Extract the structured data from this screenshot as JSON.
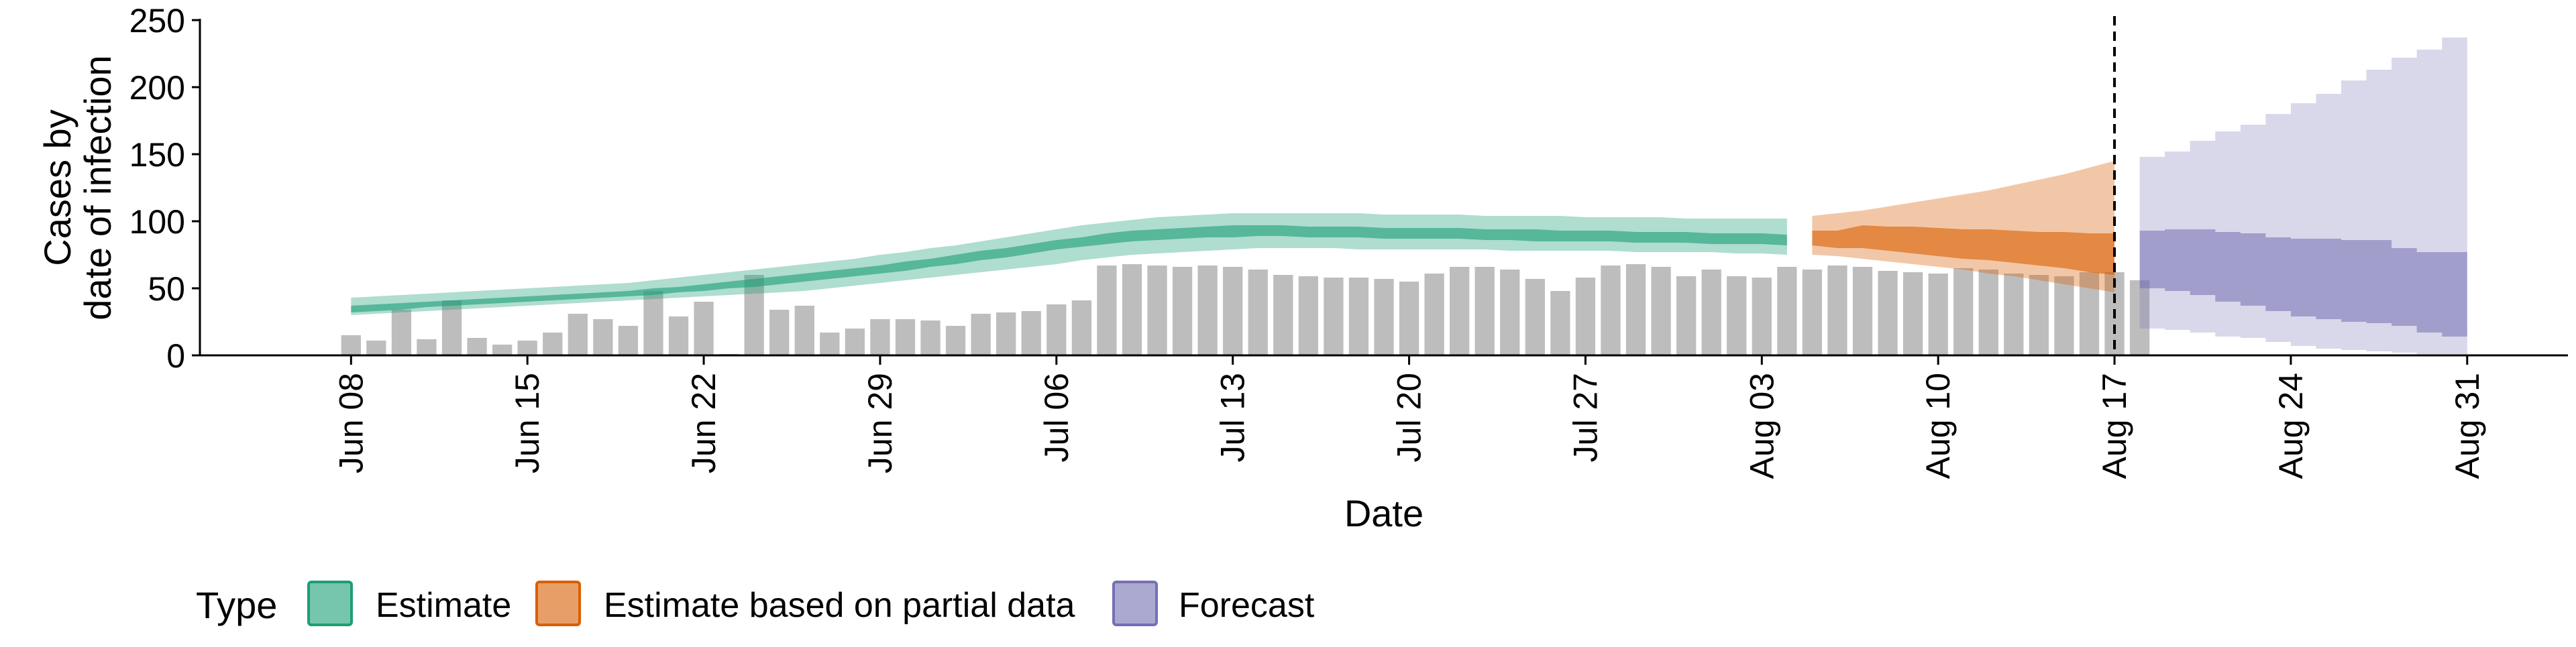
{
  "chart_data": {
    "type": "bar",
    "title": "",
    "xlabel": "Date",
    "ylabel_lines": [
      "Cases by",
      "date of infection"
    ],
    "ylim": [
      0,
      250
    ],
    "yticks": [
      0,
      50,
      100,
      150,
      200,
      250
    ],
    "x_range": [
      "2020-06-02",
      "2020-09-04"
    ],
    "xtick_labels": [
      {
        "date": "2020-06-08",
        "label": "Jun 08"
      },
      {
        "date": "2020-06-15",
        "label": "Jun 15"
      },
      {
        "date": "2020-06-22",
        "label": "Jun 22"
      },
      {
        "date": "2020-06-29",
        "label": "Jun 29"
      },
      {
        "date": "2020-07-06",
        "label": "Jul 06"
      },
      {
        "date": "2020-07-13",
        "label": "Jul 13"
      },
      {
        "date": "2020-07-20",
        "label": "Jul 20"
      },
      {
        "date": "2020-07-27",
        "label": "Jul 27"
      },
      {
        "date": "2020-08-03",
        "label": "Aug 03"
      },
      {
        "date": "2020-08-10",
        "label": "Aug 10"
      },
      {
        "date": "2020-08-17",
        "label": "Aug 17"
      },
      {
        "date": "2020-08-24",
        "label": "Aug 24"
      },
      {
        "date": "2020-08-31",
        "label": "Aug 31"
      }
    ],
    "bars": {
      "start_date": "2020-06-08",
      "color": "#bdbdbd",
      "values": [
        15,
        11,
        34,
        12,
        41,
        13,
        8,
        11,
        17,
        31,
        27,
        22,
        48,
        29,
        40,
        1,
        60,
        34,
        37,
        17,
        20,
        27,
        27,
        26,
        22,
        31,
        32,
        33,
        38,
        41,
        67,
        68,
        67,
        66,
        67,
        66,
        64,
        60,
        59,
        58,
        58,
        57,
        55,
        61,
        66,
        66,
        64,
        57,
        48,
        58,
        67,
        68,
        66,
        59,
        64,
        59,
        58,
        66,
        64,
        67,
        66,
        63,
        62,
        61,
        65,
        64,
        61,
        60,
        59,
        62,
        62,
        56
      ]
    },
    "vline_date": "2020-08-17",
    "gap_between_segments": "2020-08-04",
    "series": [
      {
        "name": "Estimate",
        "color": "#1b9e77",
        "start_date": "2020-06-08",
        "outer_low": [
          30,
          31,
          32,
          33,
          34,
          35,
          36,
          37,
          38,
          39,
          40,
          41,
          42,
          43,
          44,
          45,
          46,
          47,
          48,
          50,
          52,
          54,
          56,
          58,
          60,
          62,
          64,
          66,
          68,
          71,
          73,
          75,
          76,
          77,
          78,
          79,
          80,
          80,
          80,
          80,
          79,
          79,
          79,
          79,
          79,
          79,
          78,
          78,
          78,
          78,
          78,
          77,
          77,
          77,
          77,
          76,
          76,
          75
        ],
        "inner_low": [
          32,
          33,
          34,
          36,
          37,
          38,
          39,
          40,
          41,
          42,
          43,
          44,
          45,
          47,
          48,
          50,
          51,
          53,
          55,
          57,
          59,
          61,
          63,
          66,
          68,
          71,
          73,
          76,
          79,
          81,
          83,
          85,
          86,
          87,
          88,
          88,
          89,
          89,
          88,
          88,
          88,
          87,
          87,
          87,
          87,
          86,
          86,
          85,
          85,
          85,
          85,
          84,
          84,
          84,
          83,
          83,
          83,
          82
        ],
        "inner_high": [
          37,
          38,
          39,
          40,
          41,
          42,
          43,
          44,
          45,
          46,
          47,
          48,
          50,
          51,
          53,
          55,
          57,
          59,
          61,
          63,
          65,
          67,
          70,
          72,
          75,
          78,
          80,
          83,
          86,
          88,
          91,
          93,
          94,
          95,
          96,
          97,
          97,
          97,
          96,
          96,
          96,
          95,
          95,
          95,
          95,
          94,
          94,
          94,
          93,
          93,
          93,
          92,
          92,
          92,
          91,
          91,
          91,
          90
        ],
        "outer_high": [
          43,
          44,
          45,
          46,
          47,
          48,
          49,
          50,
          51,
          52,
          53,
          54,
          56,
          58,
          60,
          62,
          64,
          66,
          68,
          70,
          72,
          75,
          77,
          80,
          82,
          85,
          88,
          91,
          94,
          97,
          99,
          101,
          103,
          104,
          105,
          106,
          106,
          106,
          106,
          106,
          106,
          105,
          105,
          105,
          105,
          104,
          104,
          104,
          104,
          103,
          103,
          103,
          103,
          102,
          102,
          102,
          102,
          102
        ]
      },
      {
        "name": "Estimate based on partial data",
        "color": "#d95f02",
        "start_date": "2020-08-05",
        "outer_low": [
          75,
          74,
          72,
          70,
          68,
          66,
          64,
          61,
          59,
          56,
          53,
          50,
          47
        ],
        "inner_low": [
          82,
          80,
          80,
          78,
          76,
          74,
          72,
          71,
          69,
          67,
          65,
          62,
          60
        ],
        "inner_high": [
          93,
          93,
          97,
          96,
          96,
          95,
          94,
          94,
          93,
          92,
          92,
          91,
          91
        ],
        "outer_high": [
          104,
          106,
          108,
          111,
          114,
          117,
          120,
          123,
          127,
          131,
          135,
          140,
          145
        ]
      },
      {
        "name": "Forecast",
        "color": "#7570b3",
        "start_date": "2020-08-18",
        "outer_low": [
          20,
          19,
          17,
          14,
          13,
          10,
          7,
          5,
          4,
          3,
          2,
          1,
          1,
          0
        ],
        "inner_low": [
          50,
          48,
          45,
          40,
          37,
          33,
          29,
          27,
          25,
          24,
          22,
          17,
          14,
          13
        ],
        "inner_high": [
          93,
          94,
          94,
          92,
          91,
          88,
          87,
          87,
          86,
          86,
          80,
          77,
          77,
          77
        ],
        "outer_high": [
          148,
          152,
          160,
          167,
          172,
          180,
          188,
          195,
          205,
          213,
          222,
          228,
          237,
          246
        ]
      }
    ],
    "legend": {
      "title": "Type",
      "placement": "bottom-left",
      "entries": [
        "Estimate",
        "Estimate based on partial data",
        "Forecast"
      ]
    }
  }
}
